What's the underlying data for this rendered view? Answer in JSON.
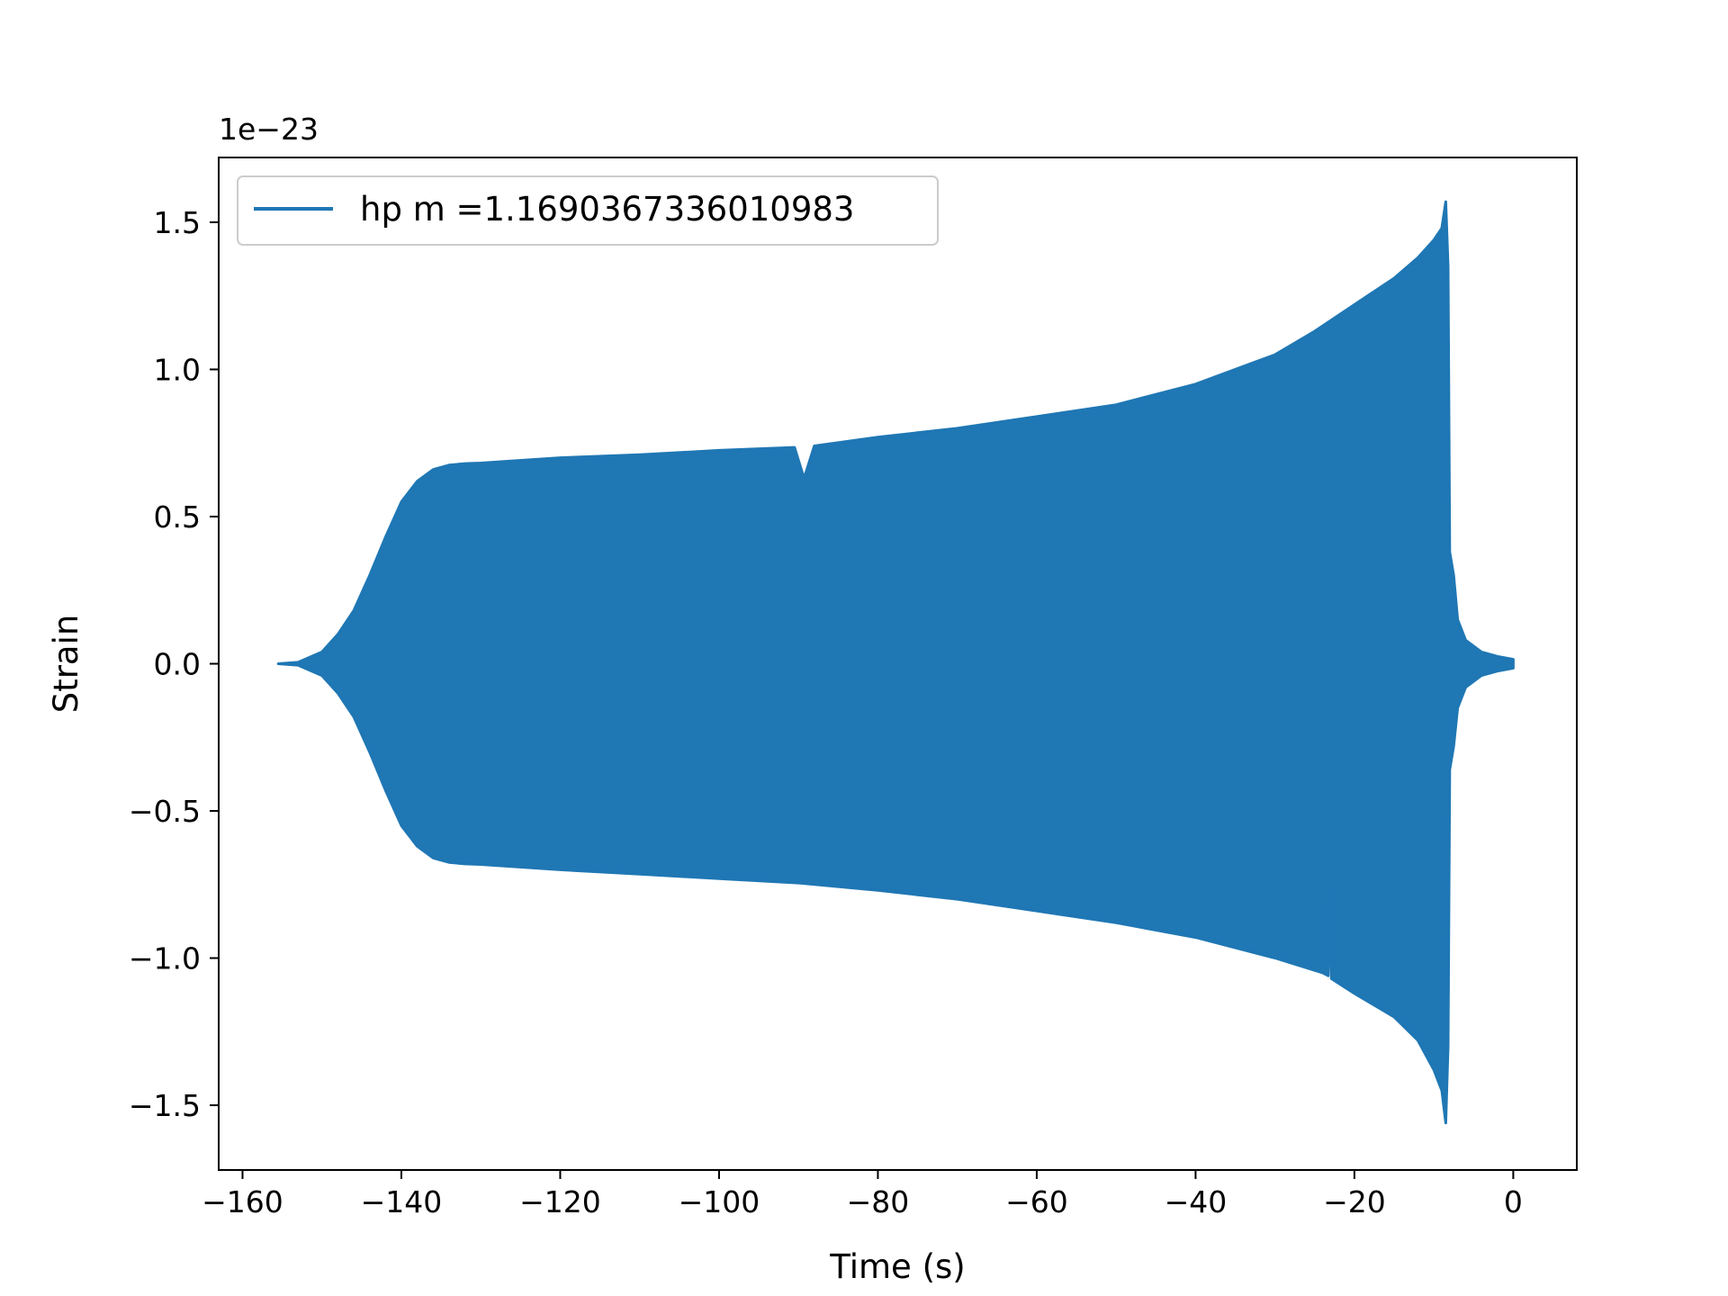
{
  "chart_data": {
    "type": "line",
    "title": "",
    "xlabel": "Time (s)",
    "ylabel": "Strain",
    "y_offset_label": "1e−23",
    "xlim": [
      -163,
      8
    ],
    "ylim": [
      -1.72,
      1.72
    ],
    "x_ticks": [
      -160,
      -140,
      -120,
      -100,
      -80,
      -60,
      -40,
      -20,
      0
    ],
    "x_tick_labels": [
      "−160",
      "−140",
      "−120",
      "−100",
      "−80",
      "−60",
      "−40",
      "−20",
      "0"
    ],
    "y_ticks": [
      -1.5,
      -1.0,
      -0.5,
      0.0,
      0.5,
      1.0,
      1.5
    ],
    "y_tick_labels": [
      "−1.5",
      "−1.0",
      "−0.5",
      "0.0",
      "0.5",
      "1.0",
      "1.5"
    ],
    "grid": false,
    "legend": {
      "position": "upper-left",
      "entries": [
        "hp m =1.1690367336010983"
      ]
    },
    "series": [
      {
        "name": "hp m =1.1690367336010983",
        "color": "#1f77b4",
        "upper_envelope": [
          [
            -155.5,
            0.0
          ],
          [
            -153,
            0.005
          ],
          [
            -150,
            0.04
          ],
          [
            -148,
            0.1
          ],
          [
            -146,
            0.18
          ],
          [
            -144,
            0.3
          ],
          [
            -142,
            0.43
          ],
          [
            -140,
            0.55
          ],
          [
            -138,
            0.62
          ],
          [
            -136,
            0.66
          ],
          [
            -134,
            0.675
          ],
          [
            -132,
            0.68
          ],
          [
            -130,
            0.682
          ],
          [
            -120,
            0.7
          ],
          [
            -110,
            0.71
          ],
          [
            -100,
            0.725
          ],
          [
            -90.5,
            0.735
          ],
          [
            -89.3,
            0.63
          ],
          [
            -88,
            0.74
          ],
          [
            -80,
            0.77
          ],
          [
            -70,
            0.8
          ],
          [
            -60,
            0.84
          ],
          [
            -50,
            0.88
          ],
          [
            -40,
            0.95
          ],
          [
            -30,
            1.05
          ],
          [
            -25,
            1.13
          ],
          [
            -20,
            1.22
          ],
          [
            -15,
            1.31
          ],
          [
            -12,
            1.38
          ],
          [
            -10,
            1.44
          ],
          [
            -9,
            1.48
          ],
          [
            -8.5,
            1.57
          ],
          [
            -8.2,
            1.35
          ],
          [
            -8,
            0.38
          ],
          [
            -7.5,
            0.3
          ],
          [
            -7,
            0.15
          ],
          [
            -6,
            0.08
          ],
          [
            -4,
            0.04
          ],
          [
            -2,
            0.025
          ],
          [
            0,
            0.015
          ]
        ],
        "lower_envelope": [
          [
            -155.5,
            0.0
          ],
          [
            -153,
            -0.005
          ],
          [
            -150,
            -0.04
          ],
          [
            -148,
            -0.1
          ],
          [
            -146,
            -0.18
          ],
          [
            -144,
            -0.3
          ],
          [
            -142,
            -0.43
          ],
          [
            -140,
            -0.55
          ],
          [
            -138,
            -0.62
          ],
          [
            -136,
            -0.66
          ],
          [
            -134,
            -0.675
          ],
          [
            -132,
            -0.68
          ],
          [
            -130,
            -0.682
          ],
          [
            -120,
            -0.7
          ],
          [
            -110,
            -0.715
          ],
          [
            -100,
            -0.73
          ],
          [
            -90,
            -0.745
          ],
          [
            -80,
            -0.77
          ],
          [
            -70,
            -0.8
          ],
          [
            -60,
            -0.84
          ],
          [
            -50,
            -0.88
          ],
          [
            -40,
            -0.93
          ],
          [
            -30,
            -1.0
          ],
          [
            -24,
            -1.05
          ],
          [
            -23.3,
            -1.06
          ],
          [
            -23.1,
            -0.78
          ],
          [
            -22.9,
            -1.07
          ],
          [
            -20,
            -1.12
          ],
          [
            -15,
            -1.2
          ],
          [
            -12,
            -1.28
          ],
          [
            -10,
            -1.38
          ],
          [
            -9,
            -1.45
          ],
          [
            -8.5,
            -1.56
          ],
          [
            -8.2,
            -1.3
          ],
          [
            -8,
            -0.36
          ],
          [
            -7.5,
            -0.28
          ],
          [
            -7,
            -0.15
          ],
          [
            -6,
            -0.08
          ],
          [
            -4,
            -0.04
          ],
          [
            -2,
            -0.025
          ],
          [
            0,
            -0.015
          ]
        ]
      }
    ]
  }
}
